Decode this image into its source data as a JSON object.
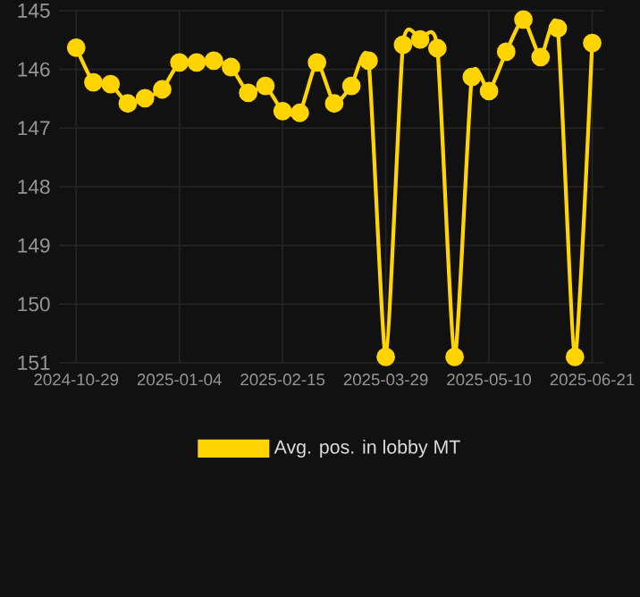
{
  "chart_data": {
    "type": "line",
    "categories": [
      "2024-10-29",
      null,
      null,
      null,
      null,
      null,
      "2025-01-04",
      null,
      null,
      null,
      null,
      null,
      "2025-02-15",
      null,
      null,
      null,
      null,
      null,
      "2025-03-29",
      null,
      null,
      null,
      null,
      null,
      "2025-05-10",
      null,
      null,
      null,
      null,
      null,
      "2025-06-21"
    ],
    "series": [
      {
        "name": "Avg. pos. in lobby MT",
        "color": "#ffd400",
        "values": [
          145.63,
          146.22,
          146.25,
          146.58,
          146.49,
          146.34,
          145.88,
          145.88,
          145.85,
          145.96,
          146.4,
          146.28,
          146.71,
          146.74,
          145.88,
          146.58,
          146.28,
          145.85,
          150.9,
          145.58,
          145.49,
          145.64,
          150.9,
          146.13,
          146.37,
          145.7,
          145.15,
          145.79,
          145.3,
          150.9,
          145.55
        ]
      }
    ],
    "ylim": [
      151,
      145
    ],
    "yticks": [
      145,
      146,
      147,
      148,
      149,
      150,
      151
    ],
    "grid": true,
    "legend": "bottom",
    "marker": "circle",
    "line_style": "solid"
  }
}
